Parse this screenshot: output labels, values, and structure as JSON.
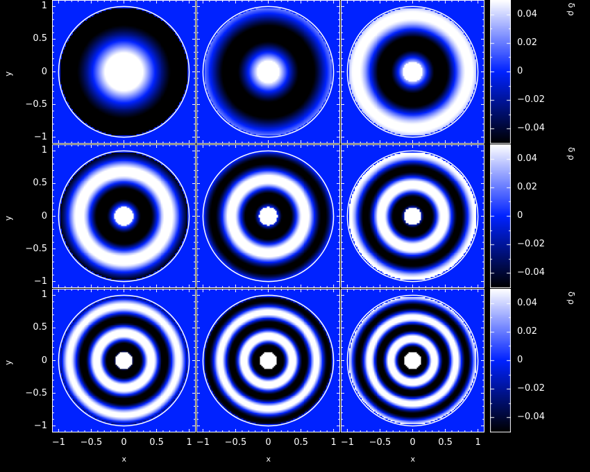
{
  "chart_data": {
    "type": "heatmap",
    "layout": "3x3 grid of panels",
    "xlabel": "x",
    "ylabel": "y",
    "colorbar_label": "δ ρ",
    "xlim": [
      -1.1,
      1.1
    ],
    "ylim": [
      -1.1,
      1.1
    ],
    "xticks": [
      "-1",
      "-0.5",
      "0",
      "0.5",
      "1"
    ],
    "xtick_values": [
      -1,
      -0.5,
      0,
      0.5,
      1
    ],
    "yticks": [
      "1",
      "0.5",
      "0",
      "-0.5",
      "-1"
    ],
    "ytick_values": [
      1,
      0.5,
      0,
      -0.5,
      -1
    ],
    "colorbar_range": [
      -0.05,
      0.05
    ],
    "colorbar_ticks": [
      "0.04",
      "0.02",
      "0",
      "-0.02",
      "-0.04"
    ],
    "colorbar_tick_values": [
      0.04,
      0.02,
      0,
      -0.02,
      -0.04
    ],
    "colormap": {
      "low": "#000000",
      "mid": "#0022ff",
      "high": "#ffffff"
    },
    "background_color": "#000000",
    "circle_outline_color": "#ffffff",
    "panels": [
      {
        "row": 1,
        "col": 1
      },
      {
        "row": 1,
        "col": 2
      },
      {
        "row": 1,
        "col": 3
      },
      {
        "row": 2,
        "col": 1
      },
      {
        "row": 2,
        "col": 2
      },
      {
        "row": 2,
        "col": 3
      },
      {
        "row": 3,
        "col": 1
      },
      {
        "row": 3,
        "col": 2
      },
      {
        "row": 3,
        "col": 3
      }
    ]
  }
}
